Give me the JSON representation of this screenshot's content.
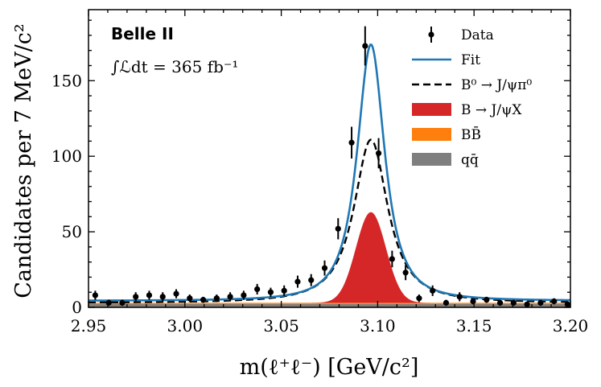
{
  "chart_data": {
    "type": "line",
    "xlabel": "m(ℓ⁺ℓ⁻) [GeV/c²]",
    "ylabel": "Candidates per 7 MeV/c²",
    "xlim": [
      2.95,
      3.2
    ],
    "ylim": [
      0,
      197
    ],
    "x_ticks": [
      "2.95",
      "3.00",
      "3.05",
      "3.10",
      "3.15",
      "3.20"
    ],
    "y_ticks": [
      "0",
      "50",
      "100",
      "150"
    ],
    "experiment": "Belle II",
    "luminosity": "∫ℒdt = 365 fb⁻¹",
    "legend_position": "top-right",
    "legend": [
      {
        "name": "Data",
        "kind": "errorbar",
        "color": "#000000"
      },
      {
        "name": "Fit",
        "kind": "line",
        "color": "#1f77b4"
      },
      {
        "name": "B⁰ → J/ψπ⁰",
        "kind": "dashed",
        "color": "#000000"
      },
      {
        "name": "B → J/ψX",
        "kind": "fill",
        "color": "#d62728"
      },
      {
        "name": "BB̄",
        "kind": "fill",
        "color": "#ff7f0e"
      },
      {
        "name": "qq̄",
        "kind": "fill",
        "color": "#7f7f7f"
      }
    ],
    "data_points": {
      "x": [
        2.9535,
        2.9605,
        2.9675,
        2.9745,
        2.9815,
        2.9885,
        2.9955,
        3.0025,
        3.0095,
        3.0165,
        3.0235,
        3.0305,
        3.0375,
        3.0445,
        3.0515,
        3.0585,
        3.0655,
        3.0725,
        3.0795,
        3.0865,
        3.0935,
        3.1005,
        3.1075,
        3.1145,
        3.1215,
        3.1285,
        3.1355,
        3.1425,
        3.1495,
        3.1565,
        3.1635,
        3.1705,
        3.1775,
        3.1845,
        3.1915,
        3.1985
      ],
      "y": [
        8,
        3,
        3,
        7,
        8,
        7,
        9,
        6,
        5,
        6,
        7,
        8,
        12,
        10,
        11,
        17,
        18,
        26,
        52,
        109,
        173,
        102,
        32,
        23,
        6,
        11,
        3,
        7,
        4,
        5,
        3,
        3,
        2,
        3,
        4,
        2
      ],
      "yerr": [
        3,
        2,
        2,
        3,
        3,
        3,
        3,
        2.5,
        2,
        2.5,
        3,
        3,
        3.5,
        3,
        3.5,
        4,
        4,
        5,
        7,
        10.5,
        13,
        10,
        5.5,
        5,
        2.5,
        3.5,
        2,
        3,
        2,
        2,
        2,
        2,
        1.5,
        2,
        2,
        1.5
      ]
    },
    "fit_model": {
      "mean": 3.0965,
      "peak_total": 171,
      "width_total": 0.0098,
      "peak_b0": 108,
      "width_b0": 0.0115,
      "peak_bjpsix": 60,
      "sigma_bjpsix": 0.0078,
      "bb_level": 3,
      "qq_level": 2.2
    },
    "colors": {
      "fit": "#1f77b4",
      "bjpsix": "#d62728",
      "bb": "#ff7f0e",
      "qq": "#7f7f7f"
    }
  }
}
